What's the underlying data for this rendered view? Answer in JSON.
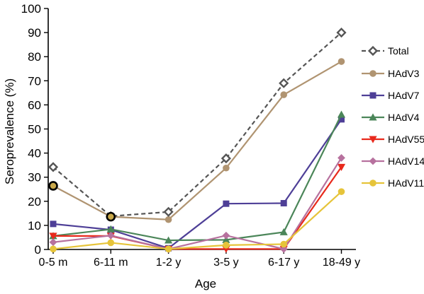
{
  "chart_data": {
    "type": "line",
    "title": "",
    "xlabel": "Age",
    "ylabel": "Seroprevalence (%)",
    "ylim": [
      0,
      100
    ],
    "yticks": [
      0,
      10,
      20,
      30,
      40,
      50,
      60,
      70,
      80,
      90,
      100
    ],
    "categories": [
      "0-5 m",
      "6-11 m",
      "1-2 y",
      "3-5 y",
      "6-17 y",
      "18-49 y"
    ],
    "grid": false,
    "legend_position": "right",
    "series": [
      {
        "name": "Total",
        "values": [
          34.2,
          13.8,
          15.6,
          37.8,
          69.0,
          90.0
        ],
        "color": "#555555",
        "marker": "diamond-open",
        "dashed": true
      },
      {
        "name": "HAdV3",
        "values": [
          26.4,
          13.6,
          12.4,
          33.8,
          64.2,
          78.0
        ],
        "color": "#b09471",
        "marker": "circle"
      },
      {
        "name": "HAdV7",
        "values": [
          10.6,
          8.2,
          0.5,
          19.0,
          19.2,
          54.0
        ],
        "color": "#4e3f97",
        "marker": "square"
      },
      {
        "name": "HAdV4",
        "values": [
          5.6,
          8.4,
          3.8,
          4.0,
          7.2,
          56.0
        ],
        "color": "#4b8659",
        "marker": "triangle-up"
      },
      {
        "name": "HAdV55",
        "values": [
          5.6,
          5.6,
          0.2,
          0.2,
          0.2,
          34.2
        ],
        "color": "#e8291c",
        "marker": "triangle-down"
      },
      {
        "name": "HAdV14",
        "values": [
          3.0,
          5.8,
          0.2,
          5.8,
          0.2,
          38.0
        ],
        "color": "#b7719e",
        "marker": "diamond"
      },
      {
        "name": "HAdV11",
        "values": [
          0.2,
          2.8,
          0.2,
          1.8,
          2.2,
          24.0
        ],
        "color": "#e6c43a",
        "marker": "circle"
      }
    ],
    "annotations": [
      {
        "category": "0-5 m",
        "value": 26.4,
        "style": "black-ringed point"
      },
      {
        "category": "6-11 m",
        "value": 13.6,
        "style": "black-ringed point"
      }
    ]
  }
}
